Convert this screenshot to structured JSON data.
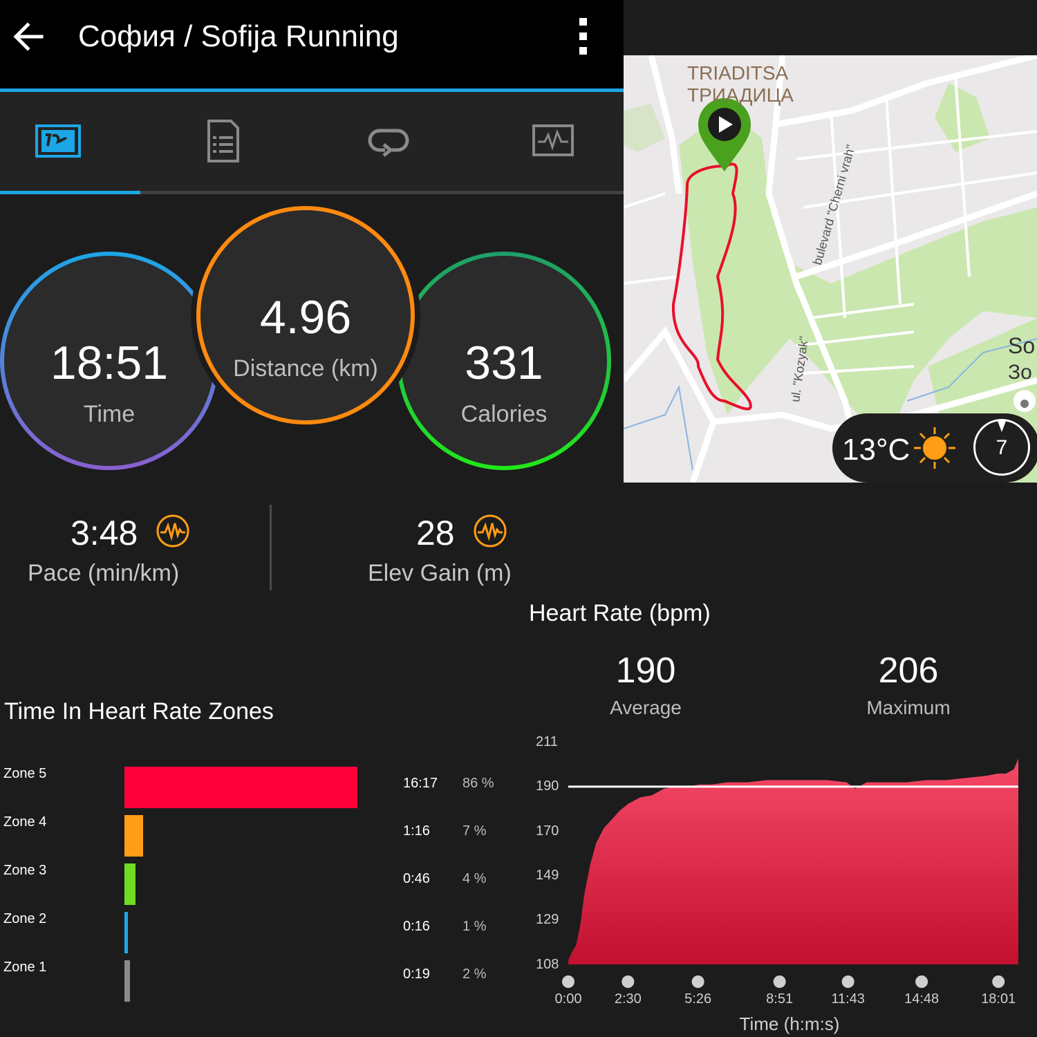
{
  "header": {
    "title": "София / Sofija Running",
    "back_icon": "arrow-left-icon",
    "menu_icon": "more-vertical-icon"
  },
  "tabs": [
    {
      "name": "overview",
      "icon": "map-overview-icon",
      "active": true
    },
    {
      "name": "details",
      "icon": "document-list-icon",
      "active": false
    },
    {
      "name": "laps",
      "icon": "loop-arrow-icon",
      "active": false
    },
    {
      "name": "charts",
      "icon": "activity-chart-icon",
      "active": false
    }
  ],
  "summary": {
    "time": {
      "value": "18:51",
      "label": "Time"
    },
    "distance": {
      "value": "4.96",
      "label": "Distance (km)"
    },
    "calories": {
      "value": "331",
      "label": "Calories"
    }
  },
  "map": {
    "area_latin": "TRIADITSA",
    "area_cyrillic": "ТРИАДИЦА",
    "street_1": "bulevard \"Cherni vrah\"",
    "street_2": "ul. \"Kozyak\"",
    "edge_label_1": "So",
    "edge_label_2": "Зо",
    "weather": {
      "temperature": "13°C",
      "icon": "sun-icon",
      "wind": "7"
    }
  },
  "stats": {
    "pace": {
      "value": "3:48",
      "label": "Pace (min/km)",
      "icon": "heart-pulse-badge-icon"
    },
    "elev": {
      "value": "28",
      "label": "Elev Gain (m)",
      "icon": "heart-pulse-badge-icon"
    }
  },
  "zones": {
    "title": "Time In Heart Rate Zones",
    "items": [
      {
        "label": "Zone 5",
        "time": "16:17",
        "pct": "86 %",
        "fraction": 0.86,
        "color": "#ff003a"
      },
      {
        "label": "Zone 4",
        "time": "1:16",
        "pct": "7 %",
        "fraction": 0.07,
        "color": "#ff9d17"
      },
      {
        "label": "Zone 3",
        "time": "0:46",
        "pct": "4 %",
        "fraction": 0.04,
        "color": "#6fdc23"
      },
      {
        "label": "Zone 2",
        "time": "0:16",
        "pct": "1 %",
        "fraction": 0.01,
        "color": "#1da8e8"
      },
      {
        "label": "Zone 1",
        "time": "0:19",
        "pct": "2 %",
        "fraction": 0.02,
        "color": "#8a8a8a"
      }
    ]
  },
  "heart_rate": {
    "title": "Heart Rate (bpm)",
    "average": {
      "value": "190",
      "label": "Average"
    },
    "maximum": {
      "value": "206",
      "label": "Maximum"
    }
  },
  "chart_data": {
    "type": "area",
    "title": "Heart Rate (bpm)",
    "xlabel": "Time (h:m:s)",
    "ylabel": "",
    "y_ticks": [
      211,
      190,
      170,
      149,
      129,
      108
    ],
    "ylim": [
      108,
      211
    ],
    "x_ticks": [
      "0:00",
      "2:30",
      "5:26",
      "8:51",
      "11:43",
      "14:48",
      "18:01"
    ],
    "x_tick_seconds": [
      0,
      150,
      326,
      531,
      703,
      888,
      1081
    ],
    "xlim_seconds": [
      0,
      1131
    ],
    "average_line": 190,
    "series": [
      {
        "x_seconds": [
          0,
          10,
          20,
          30,
          40,
          55,
          70,
          90,
          110,
          130,
          150,
          180,
          210,
          240,
          270,
          300,
          330,
          360,
          400,
          450,
          500,
          550,
          600,
          650,
          700,
          720,
          750,
          800,
          850,
          900,
          950,
          1000,
          1050,
          1080,
          1100,
          1120,
          1131
        ],
        "values": [
          110,
          114,
          117,
          126,
          140,
          154,
          164,
          171,
          175,
          179,
          182,
          185,
          186,
          189,
          190,
          190,
          191,
          191,
          192,
          192,
          193,
          193,
          193,
          193,
          192,
          189,
          192,
          192,
          192,
          193,
          193,
          194,
          195,
          196,
          196,
          198,
          203
        ]
      }
    ],
    "fill_colors": [
      "#f64a68",
      "#c2102f"
    ]
  }
}
